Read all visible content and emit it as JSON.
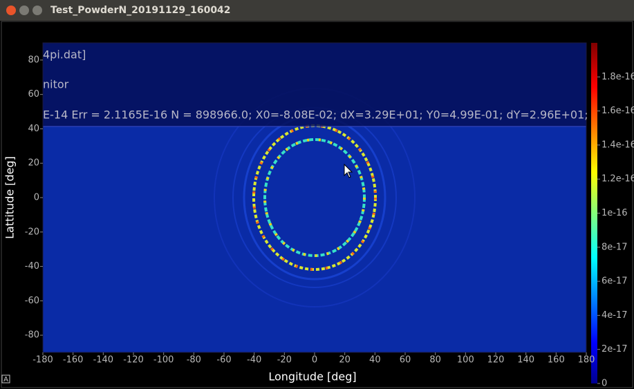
{
  "window": {
    "title": "Test_PowderN_20191129_160042"
  },
  "chart_data": {
    "type": "heatmap",
    "annotations": [
      "4pi.dat]",
      "nitor",
      "E-14 Err = 2.1165E-16 N = 898966.0; X0=-8.08E-02; dX=3.29E+01; Y0=4.99E-01; dY=2.96E+01;"
    ],
    "xlabel": "Longitude [deg]",
    "ylabel": "Lattitude [deg]",
    "xlim": [
      -180,
      180
    ],
    "xticks": [
      -180,
      -160,
      -140,
      -120,
      -100,
      -80,
      -60,
      -40,
      -20,
      0,
      20,
      40,
      60,
      80,
      100,
      120,
      140,
      160,
      180
    ],
    "ylim": [
      -90,
      90
    ],
    "yticks": [
      80,
      60,
      40,
      20,
      0,
      -20,
      -40,
      -60,
      -80
    ],
    "clim": [
      0,
      2e-16
    ],
    "cticks": [
      1.8e-16,
      1.6e-16,
      1.4e-16,
      1.2e-16,
      1e-16,
      8e-17,
      6e-17,
      4e-17,
      2e-17,
      0
    ]
  }
}
